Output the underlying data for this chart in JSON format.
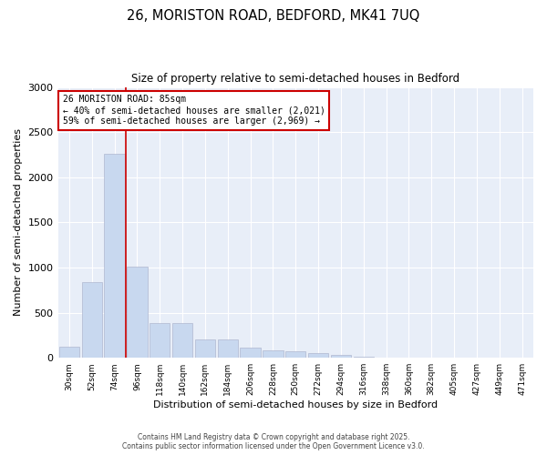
{
  "title_line1": "26, MORISTON ROAD, BEDFORD, MK41 7UQ",
  "title_line2": "Size of property relative to semi-detached houses in Bedford",
  "xlabel": "Distribution of semi-detached houses by size in Bedford",
  "ylabel": "Number of semi-detached properties",
  "categories": [
    "30sqm",
    "52sqm",
    "74sqm",
    "96sqm",
    "118sqm",
    "140sqm",
    "162sqm",
    "184sqm",
    "206sqm",
    "228sqm",
    "250sqm",
    "272sqm",
    "294sqm",
    "316sqm",
    "338sqm",
    "360sqm",
    "382sqm",
    "405sqm",
    "427sqm",
    "449sqm",
    "471sqm"
  ],
  "values": [
    120,
    840,
    2260,
    1010,
    390,
    390,
    200,
    200,
    110,
    80,
    70,
    50,
    30,
    10,
    5,
    3,
    2,
    2,
    1,
    1,
    1
  ],
  "bar_color": "#c8d8ef",
  "bar_edge_color": "#b0b8d0",
  "annotation_text_line1": "26 MORISTON ROAD: 85sqm",
  "annotation_text_line2": "← 40% of semi-detached houses are smaller (2,021)",
  "annotation_text_line3": "59% of semi-detached houses are larger (2,969) →",
  "annotation_box_facecolor": "#ffffff",
  "annotation_box_edgecolor": "#cc0000",
  "red_line_color": "#cc0000",
  "red_line_x": 2.5,
  "ylim": [
    0,
    3000
  ],
  "yticks": [
    0,
    500,
    1000,
    1500,
    2000,
    2500,
    3000
  ],
  "footer_line1": "Contains HM Land Registry data © Crown copyright and database right 2025.",
  "footer_line2": "Contains public sector information licensed under the Open Government Licence v3.0.",
  "background_color": "#ffffff",
  "plot_bg_color": "#e8eef8"
}
